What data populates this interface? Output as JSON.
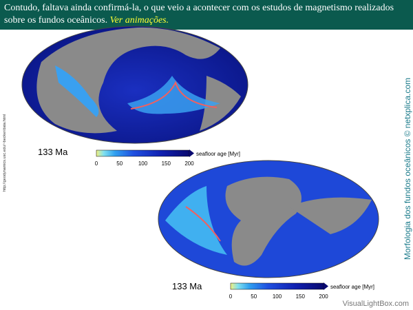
{
  "header": {
    "text": "Contudo, faltava ainda confirmá-la, o que veio a acontecer com os estudos de magnetismo realizados sobre os fundos oceânicos.",
    "link": "Ver animações."
  },
  "source_url": "http://geodynamics.usc.edu/~becker/data.html",
  "side_caption": "Morfologia dos fundos oceânicos © netxplica.com",
  "maps": [
    {
      "age_label": "133 Ma",
      "colorbar_label": "seafloor age [Myr]",
      "colorbar_ticks": [
        "0",
        "50",
        "100",
        "150",
        "200"
      ]
    },
    {
      "age_label": "133 Ma",
      "colorbar_label": "seafloor age [Myr]",
      "colorbar_ticks": [
        "0",
        "50",
        "100",
        "150",
        "200"
      ]
    }
  ],
  "watermark": "VisualLightBox.com"
}
